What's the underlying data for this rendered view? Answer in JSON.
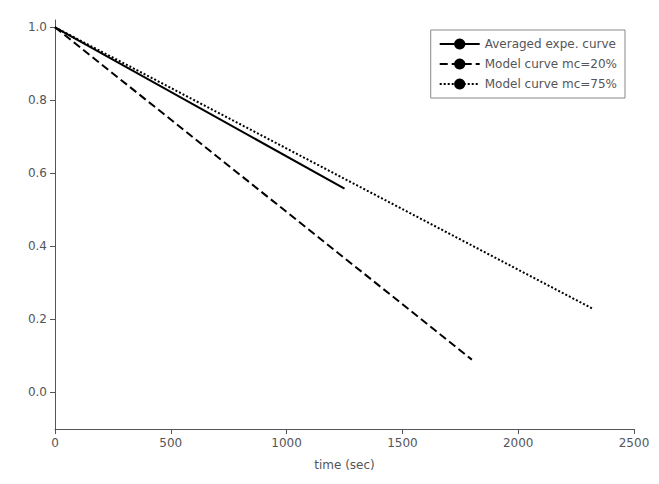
{
  "chart_data": {
    "type": "line",
    "xlabel": "time (sec)",
    "xlim": [
      0,
      2500
    ],
    "ylim": [
      -0.1,
      1.02
    ],
    "xticks": [
      0,
      500,
      1000,
      1500,
      2000,
      2500
    ],
    "yticks": [
      {
        "value": 0,
        "label": "0.0"
      },
      0.2,
      0.4,
      0.6,
      0.8,
      {
        "value": 1,
        "label": "1.0"
      }
    ],
    "grid": false,
    "legend": "upper right",
    "series": [
      {
        "name": "Averaged expe. curve",
        "color": "#000000",
        "line_style": "solid",
        "x": [
          0,
          1250
        ],
        "values": [
          1.0,
          0.558
        ]
      },
      {
        "name": "Model curve mc=20%",
        "color": "#000000",
        "line_style": "dashed",
        "x": [
          0,
          1800
        ],
        "values": [
          1.0,
          0.09
        ]
      },
      {
        "name": "Model curve mc=75%",
        "color": "#000000",
        "line_style": "dotted",
        "x": [
          0,
          2320
        ],
        "values": [
          1.0,
          0.23
        ]
      }
    ]
  }
}
